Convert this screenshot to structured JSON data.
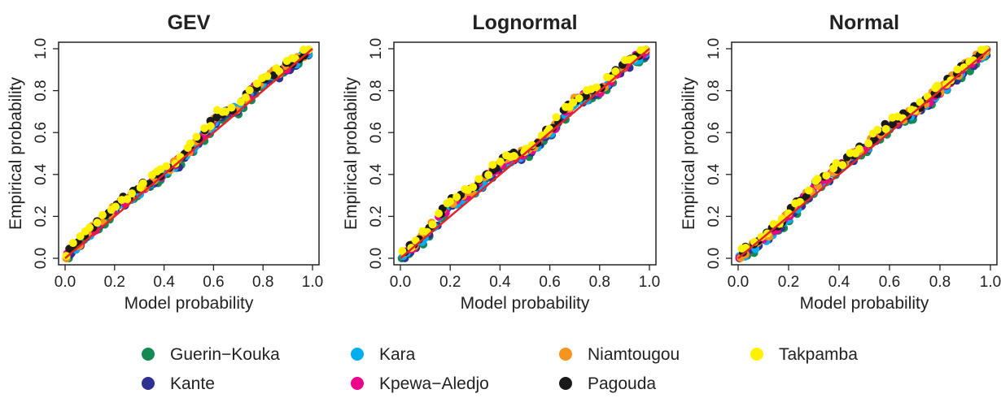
{
  "chart_data": {
    "type": "scatter",
    "reference_line": {
      "x": [
        0,
        1
      ],
      "y": [
        0,
        1
      ],
      "color": "#e3242b"
    },
    "xlim": [
      0,
      1
    ],
    "ylim": [
      0,
      1
    ],
    "x_ticks": [
      "0.0",
      "0.2",
      "0.4",
      "0.6",
      "0.8",
      "1.0"
    ],
    "y_ticks": [
      "0.0",
      "0.2",
      "0.4",
      "0.6",
      "0.8",
      "1.0"
    ],
    "xlabel": "Model probability",
    "ylabel": "Empirical probability",
    "series": [
      {
        "name": "Guerin−Kouka",
        "color": "#138a54"
      },
      {
        "name": "Kante",
        "color": "#2e3192"
      },
      {
        "name": "Kara",
        "color": "#00aeef"
      },
      {
        "name": "Kpewa−Aledjo",
        "color": "#ec008c"
      },
      {
        "name": "Niamtougou",
        "color": "#f7941d"
      },
      {
        "name": "Pagouda",
        "color": "#1a1a1a"
      },
      {
        "name": "Takpamba",
        "color": "#fff200"
      }
    ],
    "panels": [
      {
        "title": "GEV",
        "deviation": [
          [
            0.0,
            0.0
          ],
          [
            0.1,
            0.02
          ],
          [
            0.2,
            0.035
          ],
          [
            0.3,
            0.025
          ],
          [
            0.45,
            0.0
          ],
          [
            0.55,
            0.02
          ],
          [
            0.62,
            0.06
          ],
          [
            0.7,
            0.02
          ],
          [
            0.8,
            0.05
          ],
          [
            0.87,
            0.02
          ],
          [
            1.0,
            0.0
          ]
        ]
      },
      {
        "title": "Lognormal",
        "deviation": [
          [
            0.0,
            0.0
          ],
          [
            0.1,
            0.01
          ],
          [
            0.2,
            0.06
          ],
          [
            0.3,
            0.03
          ],
          [
            0.4,
            0.05
          ],
          [
            0.5,
            0.0
          ],
          [
            0.6,
            0.0
          ],
          [
            0.7,
            0.05
          ],
          [
            0.8,
            0.0
          ],
          [
            0.9,
            0.02
          ],
          [
            1.0,
            0.0
          ]
        ]
      },
      {
        "title": "Normal",
        "deviation": [
          [
            0.0,
            0.0
          ],
          [
            0.1,
            -0.01
          ],
          [
            0.2,
            0.0
          ],
          [
            0.3,
            0.04
          ],
          [
            0.4,
            0.03
          ],
          [
            0.5,
            0.03
          ],
          [
            0.6,
            0.03
          ],
          [
            0.7,
            0.0
          ],
          [
            0.8,
            0.0
          ],
          [
            0.9,
            0.01
          ],
          [
            1.0,
            0.0
          ]
        ]
      }
    ]
  }
}
